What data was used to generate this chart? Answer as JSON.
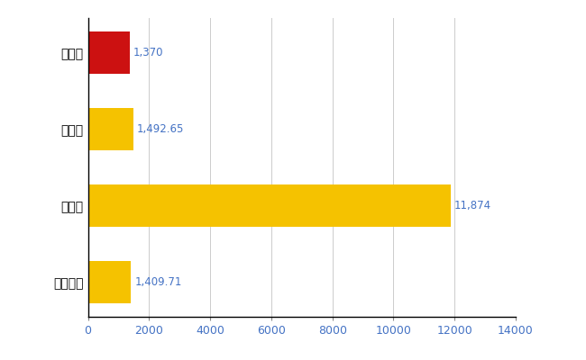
{
  "categories": [
    "全国平均",
    "県最大",
    "県平均",
    "茂原市"
  ],
  "values": [
    1409.71,
    11874,
    1492.65,
    1370
  ],
  "colors": [
    "#F5C200",
    "#F5C200",
    "#F5C200",
    "#CC1111"
  ],
  "labels": [
    "1,409.71",
    "11,874",
    "1,492.65",
    "1,370"
  ],
  "xlim": [
    0,
    14000
  ],
  "xticks": [
    0,
    2000,
    4000,
    6000,
    8000,
    10000,
    12000,
    14000
  ],
  "bar_height": 0.55,
  "grid_color": "#CCCCCC",
  "label_color": "#4472C4",
  "label_fontsize": 8.5,
  "tick_fontsize": 9,
  "ytick_fontsize": 10,
  "background_color": "#FFFFFF"
}
